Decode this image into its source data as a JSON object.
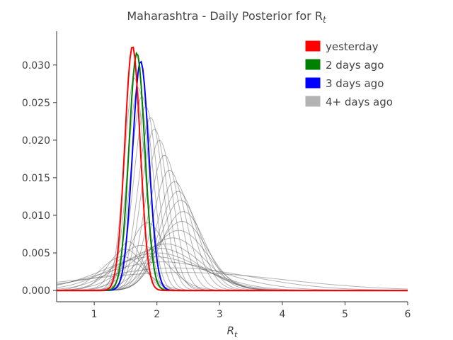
{
  "chart_data": {
    "type": "line",
    "title": "Maharashtra - Daily Posterior for R",
    "title_subscript": "t",
    "xlabel": "R",
    "xlabel_subscript": "t",
    "ylabel": "",
    "xlim": [
      0.4,
      6.0
    ],
    "ylim": [
      -0.0015,
      0.0345
    ],
    "x_ticks": [
      1,
      2,
      3,
      4,
      5,
      6
    ],
    "x_tick_labels": [
      "1",
      "2",
      "3",
      "4",
      "5",
      "6"
    ],
    "y_ticks": [
      0.0,
      0.005,
      0.01,
      0.015,
      0.02,
      0.025,
      0.03
    ],
    "y_tick_labels": [
      "0.000",
      "0.005",
      "0.010",
      "0.015",
      "0.020",
      "0.025",
      "0.030"
    ],
    "grid": false,
    "legend_position": "top-right",
    "legend": [
      {
        "label": "yesterday",
        "color": "#ff0000"
      },
      {
        "label": "2 days ago",
        "color": "#008000"
      },
      {
        "label": "3 days ago",
        "color": "#0000ff"
      },
      {
        "label": "4+ days ago",
        "color": "#b3b3b3"
      }
    ],
    "series": [
      {
        "name": "yesterday",
        "color": "#ff0000",
        "kind": "gaussian",
        "mean": 1.61,
        "std": 0.122,
        "peak": 0.0325
      },
      {
        "name": "2 days ago",
        "color": "#008000",
        "kind": "gaussian",
        "mean": 1.68,
        "std": 0.126,
        "peak": 0.0316
      },
      {
        "name": "3 days ago",
        "color": "#0000ff",
        "kind": "gaussian",
        "mean": 1.74,
        "std": 0.13,
        "peak": 0.0305
      },
      {
        "name": "4+ days ago",
        "color": "#555555",
        "kind": "gaussian_family",
        "curves": [
          {
            "mean": 1.64,
            "std": 0.16,
            "peak": 0.0283
          },
          {
            "mean": 1.7,
            "std": 0.17,
            "peak": 0.027
          },
          {
            "mean": 1.76,
            "std": 0.18,
            "peak": 0.0258
          },
          {
            "mean": 1.82,
            "std": 0.19,
            "peak": 0.0245
          },
          {
            "mean": 1.9,
            "std": 0.2,
            "peak": 0.023
          },
          {
            "mean": 1.96,
            "std": 0.21,
            "peak": 0.0215
          },
          {
            "mean": 2.04,
            "std": 0.22,
            "peak": 0.02
          },
          {
            "mean": 2.12,
            "std": 0.24,
            "peak": 0.018
          },
          {
            "mean": 2.2,
            "std": 0.26,
            "peak": 0.016
          },
          {
            "mean": 2.28,
            "std": 0.28,
            "peak": 0.0145
          },
          {
            "mean": 2.34,
            "std": 0.3,
            "peak": 0.0132
          },
          {
            "mean": 2.38,
            "std": 0.32,
            "peak": 0.012
          },
          {
            "mean": 2.42,
            "std": 0.35,
            "peak": 0.0105
          },
          {
            "mean": 2.4,
            "std": 0.4,
            "peak": 0.0092
          },
          {
            "mean": 2.35,
            "std": 0.45,
            "peak": 0.008
          },
          {
            "mean": 2.25,
            "std": 0.5,
            "peak": 0.007
          },
          {
            "mean": 2.15,
            "std": 0.55,
            "peak": 0.0062
          },
          {
            "mean": 2.05,
            "std": 0.62,
            "peak": 0.0056
          },
          {
            "mean": 2.0,
            "std": 0.7,
            "peak": 0.005
          },
          {
            "mean": 1.95,
            "std": 0.8,
            "peak": 0.0045
          },
          {
            "mean": 2.1,
            "std": 0.95,
            "peak": 0.0038
          },
          {
            "mean": 2.3,
            "std": 1.2,
            "peak": 0.003
          },
          {
            "mean": 2.4,
            "std": 1.6,
            "peak": 0.0024
          },
          {
            "mean": 1.55,
            "std": 0.22,
            "peak": 0.0065
          },
          {
            "mean": 1.5,
            "std": 0.28,
            "peak": 0.0055
          },
          {
            "mean": 1.45,
            "std": 0.35,
            "peak": 0.0045
          },
          {
            "mean": 1.75,
            "std": 0.4,
            "peak": 0.006
          },
          {
            "mean": 1.85,
            "std": 0.3,
            "peak": 0.009
          }
        ]
      }
    ]
  }
}
